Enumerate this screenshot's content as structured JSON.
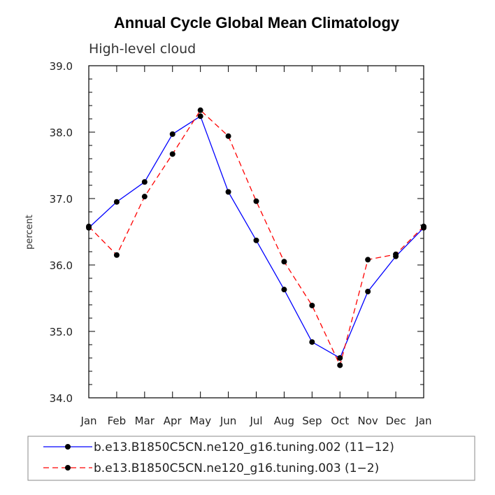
{
  "chart_data": {
    "type": "line",
    "title": "Annual Cycle Global Mean Climatology",
    "subtitle": "High-level cloud",
    "xlabel": "",
    "ylabel": "percent",
    "categories": [
      "Jan",
      "Feb",
      "Mar",
      "Apr",
      "May",
      "Jun",
      "Jul",
      "Aug",
      "Sep",
      "Oct",
      "Nov",
      "Dec",
      "Jan"
    ],
    "ylim": [
      34.0,
      39.0
    ],
    "yticks": [
      "34.0",
      "35.0",
      "36.0",
      "37.0",
      "38.0",
      "39.0"
    ],
    "grid": false,
    "legend_position": "bottom",
    "series": [
      {
        "name": "b.e13.B1850C5CN.ne120_g16.tuning.002 (11−12)",
        "color": "#0000ff",
        "style": "solid",
        "values": [
          36.56,
          36.95,
          37.25,
          37.97,
          38.24,
          37.1,
          36.37,
          35.63,
          34.84,
          34.6,
          35.6,
          36.13,
          36.56
        ]
      },
      {
        "name": "b.e13.B1850C5CN.ne120_g16.tuning.003 (1−2)",
        "color": "#ff0000",
        "style": "dashed",
        "values": [
          36.58,
          36.15,
          37.03,
          37.67,
          38.33,
          37.94,
          36.96,
          36.05,
          35.39,
          34.49,
          36.08,
          36.16,
          36.58
        ]
      }
    ]
  }
}
